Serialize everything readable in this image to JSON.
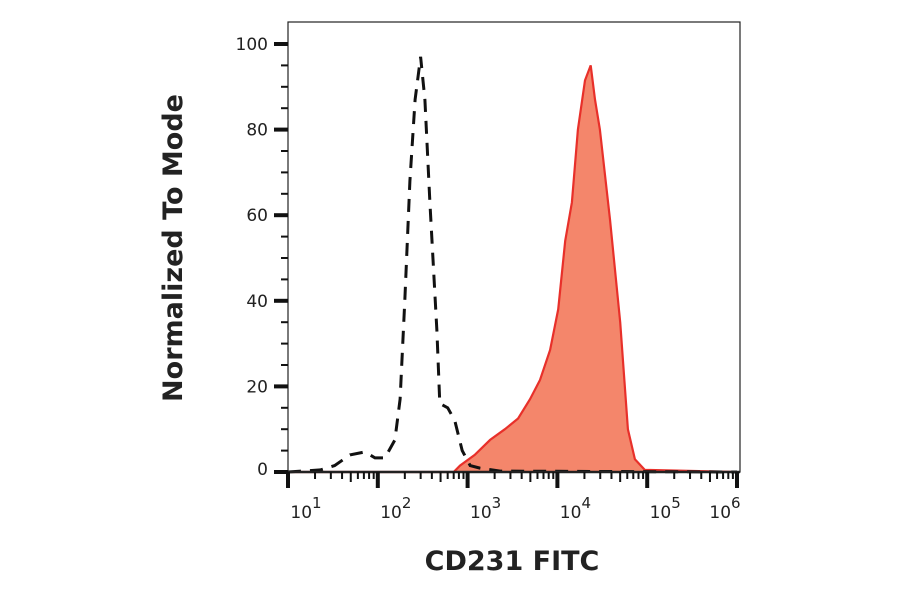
{
  "chart_data": {
    "type": "area",
    "title": "",
    "xlabel": "CD231 FITC",
    "ylabel": "Normalized To Mode",
    "x_scale": "log",
    "xlim": [
      10,
      1000000
    ],
    "ylim": [
      0,
      100
    ],
    "x_ticks": [
      {
        "base": "10",
        "exp": "1",
        "value": 10
      },
      {
        "base": "10",
        "exp": "2",
        "value": 100
      },
      {
        "base": "10",
        "exp": "3",
        "value": 1000
      },
      {
        "base": "10",
        "exp": "4",
        "value": 10000
      },
      {
        "base": "10",
        "exp": "5",
        "value": 100000
      },
      {
        "base": "10",
        "exp": "6",
        "value": 1000000
      }
    ],
    "y_ticks": [
      "0",
      "20",
      "40",
      "60",
      "80",
      "100"
    ],
    "grid": false,
    "series": [
      {
        "style": "dashed-line",
        "color": "#111111",
        "x": [
          10,
          23,
          33,
          49,
          72,
          93,
          120,
          155,
          177,
          200,
          228,
          260,
          300,
          335,
          380,
          455,
          490,
          600,
          720,
          870,
          1070,
          1370,
          2300,
          1000000
        ],
        "y": [
          0,
          0.5,
          1.5,
          4,
          4.7,
          3.3,
          3.3,
          7.5,
          17,
          40,
          68,
          87,
          97,
          87,
          63,
          33,
          16,
          15,
          12,
          5,
          1.5,
          0.9,
          0.2,
          0
        ]
      },
      {
        "style": "filled",
        "color": "#e8302a",
        "fill": "#f4866b",
        "x": [
          10,
          700,
          822,
          1200,
          1780,
          2600,
          3650,
          4950,
          6400,
          8300,
          10200,
          12200,
          14500,
          16900,
          20300,
          23500,
          26200,
          29700,
          38500,
          50000,
          61000,
          73000,
          94000,
          1000000
        ],
        "y": [
          0,
          0,
          1.5,
          4,
          7.5,
          10,
          12.5,
          17,
          21.5,
          28.5,
          38,
          54,
          63,
          80,
          91.5,
          95,
          87,
          80,
          59,
          35,
          10,
          3,
          0.5,
          0
        ]
      }
    ]
  }
}
